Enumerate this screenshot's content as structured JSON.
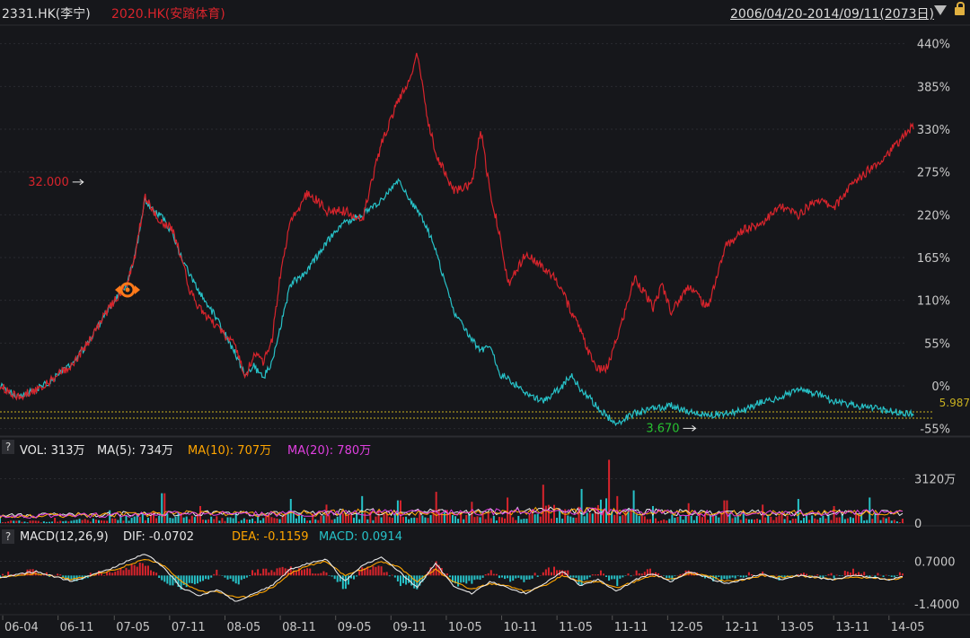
{
  "header": {
    "symbol_primary": "2331.HK(李宁)",
    "symbol_compare": "2020.HK(安踏体育)",
    "range": "2006/04/20-2014/09/11(2073日)",
    "color_primary": "#27c2c8",
    "color_compare": "#d8242c"
  },
  "vol_bar": {
    "help": "?",
    "vol": "VOL: 313万",
    "ma5": "MA(5): 734万",
    "ma10": "MA(10): 707万",
    "ma20": "MA(20): 780万"
  },
  "macd_bar": {
    "help": "?",
    "params": "MACD(12,26,9)",
    "dif": "DIF: -0.0702",
    "dea": "DEA: -0.1159",
    "macd": "MACD: 0.0914"
  },
  "chart_data": [
    {
      "type": "line",
      "title": "",
      "ylim": [
        -60,
        450
      ],
      "y_ticks": [
        {
          "value": 440,
          "label": "440%"
        },
        {
          "value": 385,
          "label": "385%"
        },
        {
          "value": 330,
          "label": "330%"
        },
        {
          "value": 275,
          "label": "275%"
        },
        {
          "value": 220,
          "label": "220%"
        },
        {
          "value": 165,
          "label": "165%"
        },
        {
          "value": 110,
          "label": "110%"
        },
        {
          "value": 55,
          "label": "55%"
        },
        {
          "value": 0,
          "label": "0%"
        },
        {
          "value": -55,
          "label": "-55%"
        }
      ],
      "annotations": [
        {
          "label": "32.000",
          "x": 7.4,
          "y": 262
        },
        {
          "label": "3.670",
          "x": 75.5,
          "y": -50
        },
        {
          "label": "5.987",
          "x": 100,
          "y": -30
        }
      ],
      "series": [
        {
          "name": "2331.HK(李宁)",
          "color": "#27c2c8",
          "x": [
            0,
            2,
            4,
            6,
            8,
            10,
            12,
            14,
            15,
            16,
            17,
            18,
            19,
            20,
            21,
            22,
            24,
            26,
            27,
            28,
            29,
            30,
            31,
            32,
            34,
            36,
            38,
            40,
            42,
            44,
            45,
            46,
            47,
            48,
            50,
            52,
            53,
            54,
            55,
            56,
            58,
            60,
            61,
            62,
            63,
            64,
            65,
            66,
            67,
            68,
            70,
            72,
            73,
            74,
            76,
            78,
            80,
            82,
            84,
            86,
            88,
            90,
            92,
            94,
            96,
            98,
            100.7
          ],
          "y": [
            0,
            -15,
            -5,
            10,
            28,
            60,
            100,
            130,
            175,
            240,
            225,
            215,
            195,
            165,
            140,
            120,
            85,
            40,
            15,
            25,
            10,
            30,
            80,
            130,
            150,
            185,
            210,
            220,
            238,
            265,
            240,
            225,
            205,
            175,
            95,
            60,
            45,
            55,
            15,
            10,
            -10,
            -20,
            -10,
            0,
            15,
            -5,
            -15,
            -30,
            -40,
            -48,
            -35,
            -30,
            -28,
            -25,
            -33,
            -38,
            -35,
            -32,
            -20,
            -15,
            -5,
            -10,
            -20,
            -25,
            -28,
            -32,
            -37
          ]
        },
        {
          "name": "2020.HK(安踏体育)",
          "color": "#d8242c",
          "x": [
            0,
            2,
            4,
            6,
            8,
            10,
            12,
            14,
            15,
            16,
            17,
            18,
            19,
            20,
            21,
            22,
            24,
            26,
            27,
            28,
            29,
            30,
            31,
            32,
            34,
            36,
            38,
            40,
            42,
            44,
            45,
            46,
            47,
            48,
            50,
            52,
            53,
            54,
            55,
            56,
            58,
            60,
            61,
            62,
            63,
            64,
            65,
            66,
            67,
            68,
            70,
            72,
            73,
            74,
            76,
            78,
            80,
            82,
            84,
            86,
            88,
            90,
            92,
            94,
            96,
            98,
            100.7
          ],
          "y": [
            0,
            -15,
            -5,
            10,
            28,
            60,
            100,
            130,
            175,
            245,
            220,
            210,
            200,
            165,
            120,
            100,
            75,
            50,
            10,
            40,
            30,
            60,
            150,
            210,
            250,
            225,
            225,
            215,
            310,
            370,
            390,
            430,
            350,
            300,
            250,
            260,
            330,
            250,
            200,
            130,
            170,
            150,
            140,
            120,
            95,
            70,
            40,
            20,
            25,
            60,
            140,
            100,
            130,
            95,
            130,
            100,
            180,
            200,
            210,
            230,
            220,
            240,
            230,
            260,
            280,
            300,
            335
          ]
        }
      ]
    },
    {
      "type": "bar",
      "title": "",
      "y_ticks": [
        {
          "value": 3120,
          "label": "3120万"
        },
        {
          "value": 0,
          "label": "0"
        }
      ],
      "ylim": [
        0,
        4600
      ],
      "series": [
        {
          "name": "VOL",
          "color": "#d8242c",
          "alt_color": "#27c2c8",
          "x": [
            0,
            6,
            12,
            18,
            22,
            26,
            32,
            36,
            40,
            44,
            48,
            52,
            56,
            60,
            64,
            67,
            68,
            70,
            72,
            76,
            80,
            84,
            88,
            92,
            96,
            99.5
          ],
          "values": [
            420,
            380,
            900,
            2100,
            1200,
            800,
            1700,
            1300,
            1900,
            1600,
            2200,
            1500,
            1800,
            2700,
            2400,
            4450,
            1900,
            2300,
            1200,
            1400,
            1600,
            1300,
            1700,
            1200,
            1800,
            313
          ]
        },
        {
          "name": "MA(5)",
          "color": "#e8e8e8",
          "x": [
            0,
            10,
            20,
            30,
            40,
            50,
            60,
            70,
            80,
            90,
            99.5
          ],
          "values": [
            500,
            600,
            700,
            650,
            800,
            750,
            900,
            800,
            700,
            750,
            734
          ]
        },
        {
          "name": "MA(10)",
          "color": "#ffa500",
          "x": [
            0,
            10,
            20,
            30,
            40,
            50,
            60,
            70,
            80,
            90,
            99.5
          ],
          "values": [
            480,
            580,
            680,
            640,
            780,
            730,
            880,
            780,
            690,
            720,
            707
          ]
        },
        {
          "name": "MA(20)",
          "color": "#e040e0",
          "x": [
            0,
            10,
            20,
            30,
            40,
            50,
            60,
            70,
            80,
            90,
            99.5
          ],
          "values": [
            460,
            560,
            660,
            630,
            760,
            720,
            860,
            770,
            680,
            700,
            780
          ]
        }
      ]
    },
    {
      "type": "line",
      "title": "",
      "y_ticks": [
        {
          "value": 0.7,
          "label": "0.7000"
        },
        {
          "value": -1.4,
          "label": "-1.4000"
        }
      ],
      "ylim": [
        -1.8,
        1.3
      ],
      "series": [
        {
          "name": "DIF",
          "color": "#e8e8e8",
          "x": [
            0,
            4,
            8,
            12,
            16,
            18,
            20,
            22,
            24,
            26,
            28,
            30,
            32,
            34,
            36,
            38,
            40,
            42,
            44,
            46,
            48,
            50,
            52,
            54,
            56,
            58,
            60,
            62,
            64,
            66,
            68,
            70,
            72,
            74,
            76,
            78,
            80,
            82,
            84,
            86,
            88,
            90,
            92,
            94,
            96,
            98,
            99.5
          ],
          "y": [
            -0.1,
            0.2,
            -0.3,
            0.3,
            1.1,
            0.4,
            -0.6,
            -1.0,
            -0.7,
            -1.3,
            -0.9,
            -0.5,
            0.3,
            0.6,
            0.8,
            -0.3,
            0.5,
            0.9,
            0.2,
            -0.6,
            0.6,
            -0.5,
            -0.9,
            -0.3,
            -0.6,
            -0.9,
            -0.4,
            0.2,
            -0.5,
            -0.2,
            -0.8,
            -0.2,
            0.1,
            -0.3,
            0.2,
            -0.1,
            -0.4,
            -0.2,
            0.1,
            -0.2,
            0.0,
            -0.1,
            -0.2,
            0.0,
            -0.1,
            -0.2,
            -0.07
          ]
        },
        {
          "name": "DEA",
          "color": "#ffa500",
          "x": [
            0,
            4,
            8,
            12,
            16,
            18,
            20,
            22,
            24,
            26,
            28,
            30,
            32,
            34,
            36,
            38,
            40,
            42,
            44,
            46,
            48,
            50,
            52,
            54,
            56,
            58,
            60,
            62,
            64,
            66,
            68,
            70,
            72,
            74,
            76,
            78,
            80,
            82,
            84,
            86,
            88,
            90,
            92,
            94,
            96,
            98,
            99.5
          ],
          "y": [
            -0.1,
            0.1,
            -0.2,
            0.2,
            0.8,
            0.5,
            -0.3,
            -0.8,
            -0.8,
            -1.1,
            -1.0,
            -0.6,
            0.1,
            0.5,
            0.7,
            0.0,
            0.3,
            0.7,
            0.4,
            -0.3,
            0.3,
            -0.3,
            -0.7,
            -0.4,
            -0.5,
            -0.8,
            -0.5,
            0.0,
            -0.3,
            -0.3,
            -0.6,
            -0.3,
            0.0,
            -0.2,
            0.1,
            0.0,
            -0.3,
            -0.2,
            0.0,
            -0.1,
            0.0,
            -0.1,
            -0.2,
            -0.1,
            -0.1,
            -0.2,
            -0.1159
          ]
        }
      ]
    }
  ],
  "x_axis": {
    "ticks": [
      {
        "x": 0.3,
        "label": "06-04"
      },
      {
        "x": 6.4,
        "label": "06-11"
      },
      {
        "x": 12.6,
        "label": "07-05"
      },
      {
        "x": 18.7,
        "label": "07-11"
      },
      {
        "x": 24.8,
        "label": "08-05"
      },
      {
        "x": 30.9,
        "label": "08-11"
      },
      {
        "x": 37.0,
        "label": "09-05"
      },
      {
        "x": 43.1,
        "label": "09-11"
      },
      {
        "x": 49.2,
        "label": "10-05"
      },
      {
        "x": 55.3,
        "label": "10-11"
      },
      {
        "x": 61.4,
        "label": "11-05"
      },
      {
        "x": 67.5,
        "label": "11-11"
      },
      {
        "x": 73.6,
        "label": "12-05"
      },
      {
        "x": 79.7,
        "label": "12-11"
      },
      {
        "x": 85.8,
        "label": "13-05"
      },
      {
        "x": 91.9,
        "label": "13-11"
      },
      {
        "x": 98.0,
        "label": "14-05"
      }
    ]
  }
}
